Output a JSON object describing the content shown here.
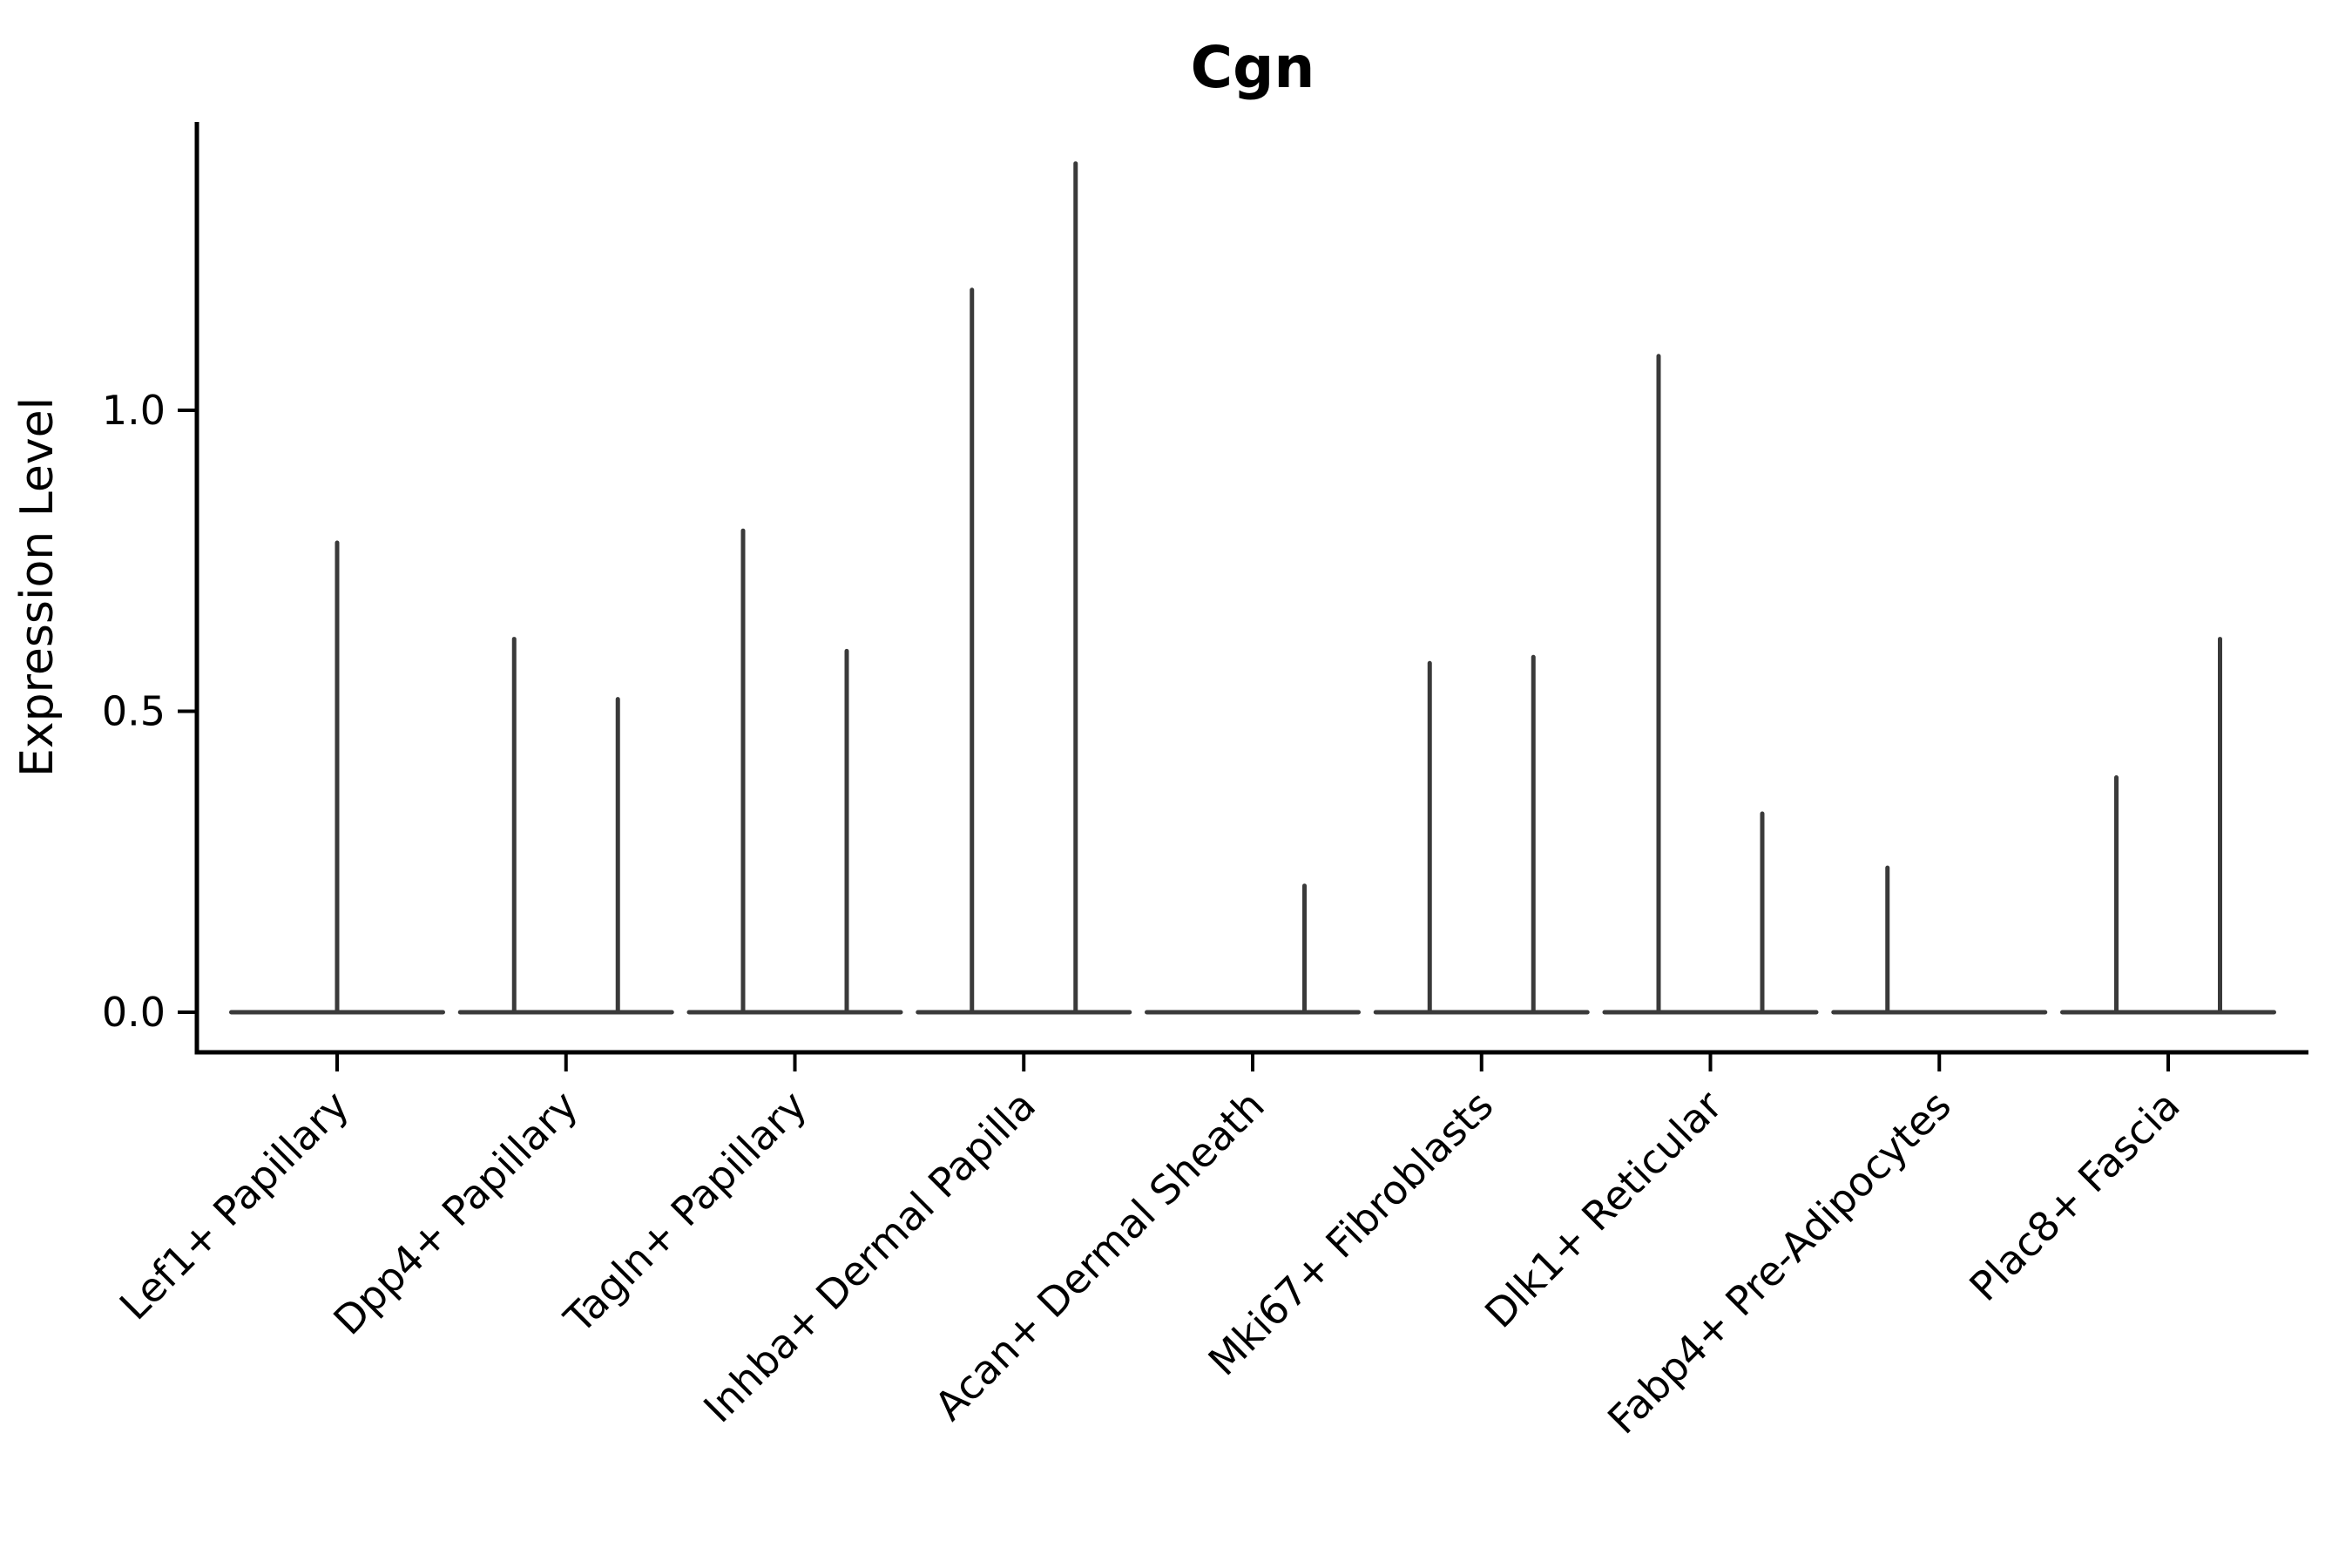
{
  "chart_data": {
    "type": "violin",
    "title": "Cgn",
    "ylabel": "Expression Level",
    "xlabel": "",
    "yticks": [
      0.0,
      0.5,
      1.0
    ],
    "ytick_labels": [
      "0.0",
      "0.5",
      "1.0"
    ],
    "ylim": [
      -0.07,
      1.48
    ],
    "grid": false,
    "legend": "none",
    "line_color": "#3A3A3A",
    "axis_color": "#000000",
    "categories": [
      "Lef1+ Papillary",
      "Dpp4+ Papillary",
      "Tagln+ Papillary",
      "Inhba+ Dermal Papilla",
      "Acan+ Dermal Sheath",
      "Mki67+ Fibroblasts",
      "Dlk1+ Reticular",
      "Fabp4+ Pre-Adipocytes",
      "Plac8+ Fascia"
    ],
    "violins": [
      {
        "category": "Lef1+ Papillary",
        "baseline": 0.0,
        "spikes": [
          {
            "position": "center",
            "peak": 0.78
          }
        ]
      },
      {
        "category": "Dpp4+ Papillary",
        "baseline": 0.0,
        "spikes": [
          {
            "position": "left",
            "peak": 0.62
          },
          {
            "position": "right",
            "peak": 0.52
          }
        ]
      },
      {
        "category": "Tagln+ Papillary",
        "baseline": 0.0,
        "spikes": [
          {
            "position": "left",
            "peak": 0.8
          },
          {
            "position": "right",
            "peak": 0.6
          }
        ]
      },
      {
        "category": "Inhba+ Dermal Papilla",
        "baseline": 0.0,
        "spikes": [
          {
            "position": "left",
            "peak": 1.2
          },
          {
            "position": "right",
            "peak": 1.41
          }
        ]
      },
      {
        "category": "Acan+ Dermal Sheath",
        "baseline": 0.0,
        "spikes": [
          {
            "position": "right",
            "peak": 0.21
          }
        ]
      },
      {
        "category": "Mki67+ Fibroblasts",
        "baseline": 0.0,
        "spikes": [
          {
            "position": "left",
            "peak": 0.58
          },
          {
            "position": "right",
            "peak": 0.59
          }
        ]
      },
      {
        "category": "Dlk1+ Reticular",
        "baseline": 0.0,
        "spikes": [
          {
            "position": "left",
            "peak": 1.09
          },
          {
            "position": "right",
            "peak": 0.33
          }
        ]
      },
      {
        "category": "Fabp4+ Pre-Adipocytes",
        "baseline": 0.0,
        "spikes": [
          {
            "position": "left",
            "peak": 0.24
          }
        ]
      },
      {
        "category": "Plac8+ Fascia",
        "baseline": 0.0,
        "spikes": [
          {
            "position": "left",
            "peak": 0.39
          },
          {
            "position": "right",
            "peak": 0.62
          }
        ]
      }
    ]
  }
}
